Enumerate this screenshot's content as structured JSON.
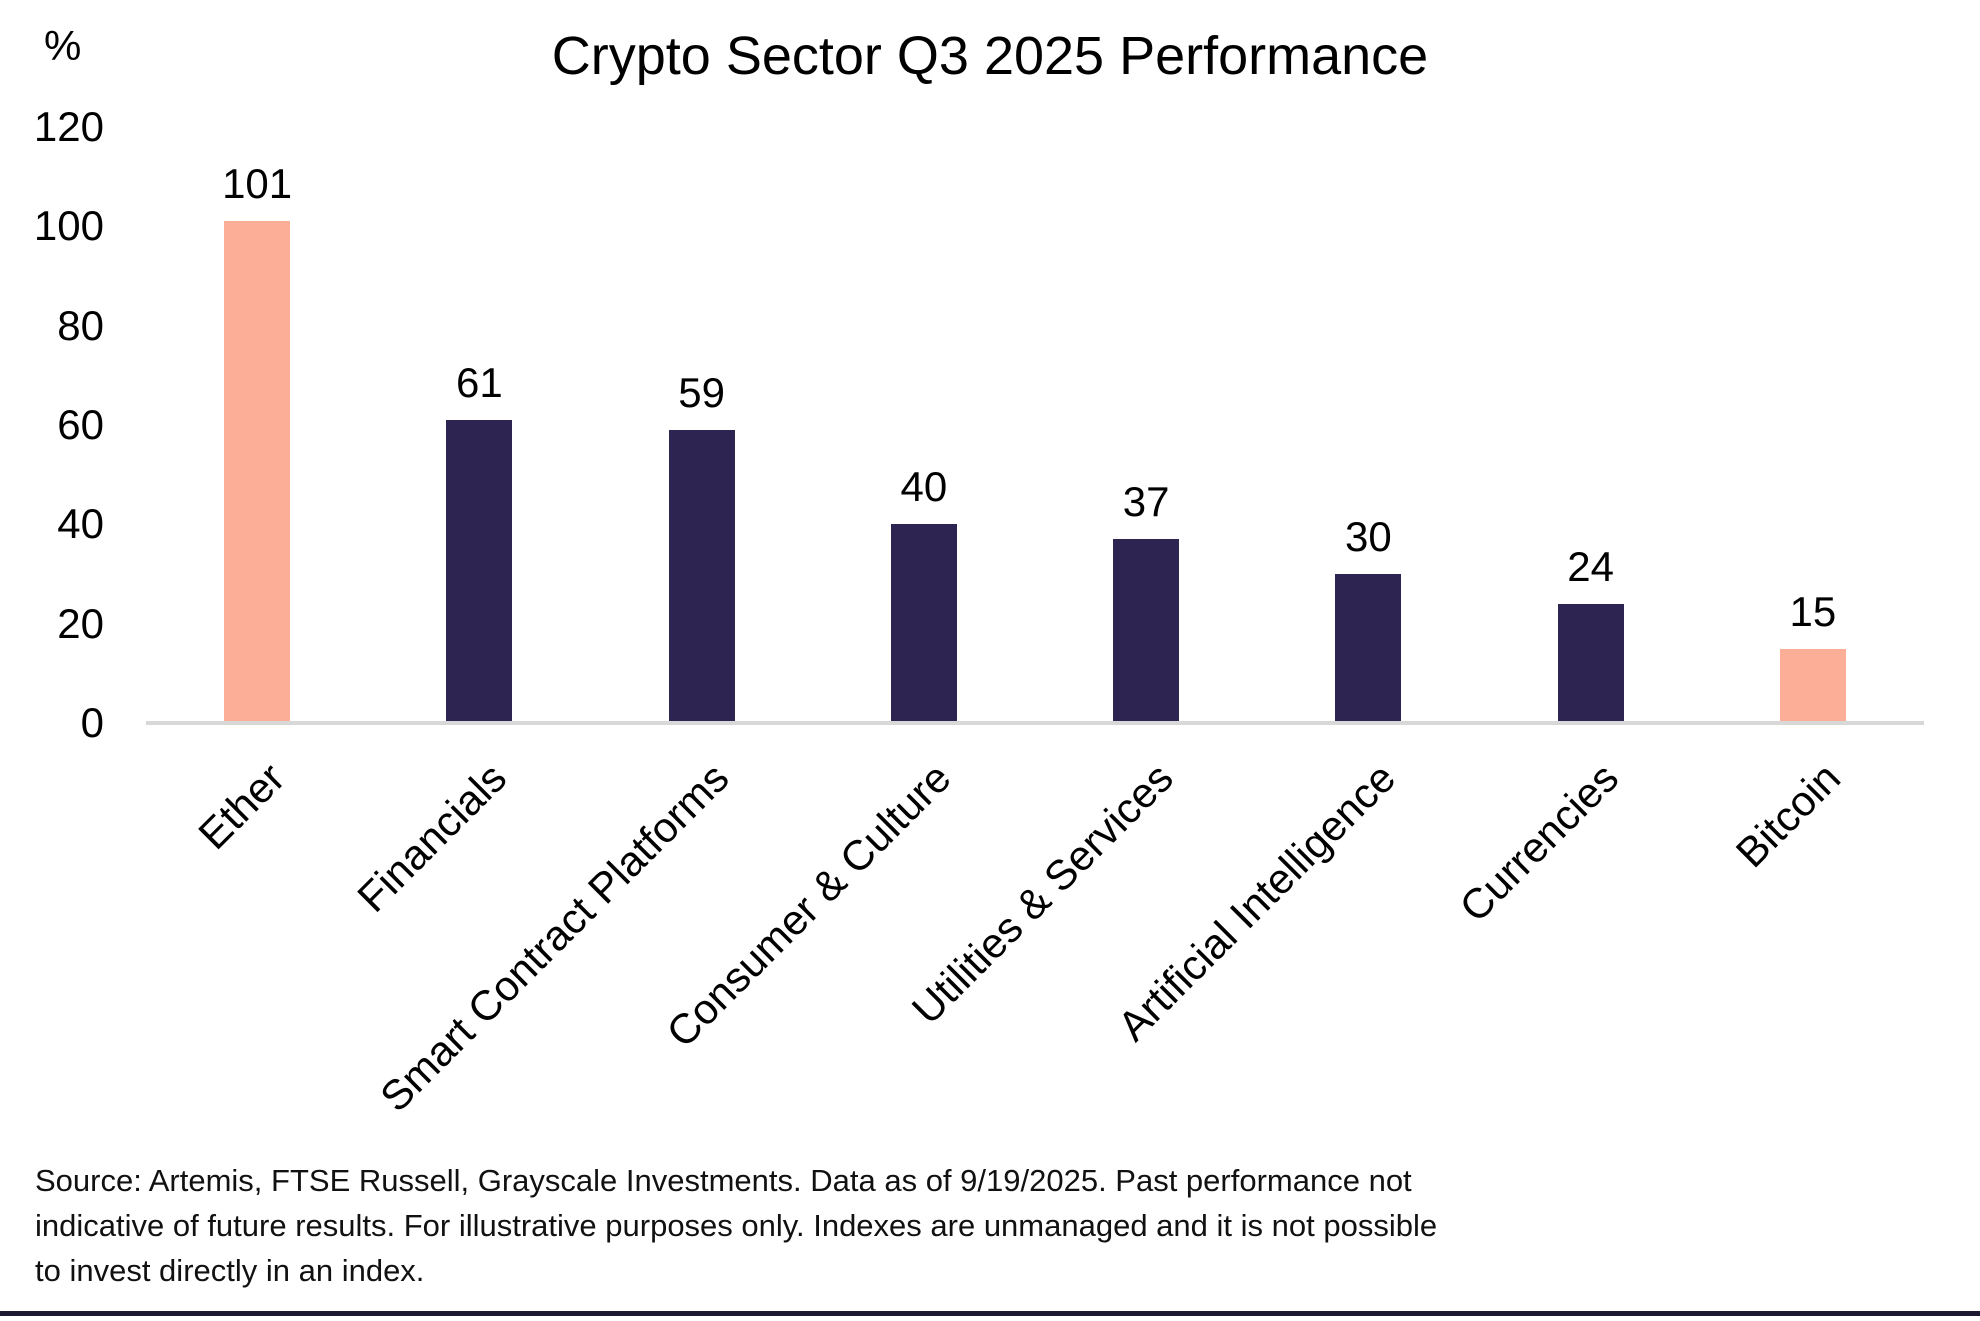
{
  "chart_data": {
    "type": "bar",
    "title": "Crypto Sector Q3 2025 Performance",
    "ylabel": "%",
    "ylim": [
      0,
      120
    ],
    "yticks": [
      0,
      20,
      40,
      60,
      80,
      100,
      120
    ],
    "categories": [
      "Ether",
      "Financials",
      "Smart Contract Platforms",
      "Consumer & Culture",
      "Utilities & Services",
      "Artificial Intelligence",
      "Currencies",
      "Bitcoin"
    ],
    "values": [
      101,
      61,
      59,
      40,
      37,
      30,
      24,
      15
    ],
    "bar_colors": [
      "#fcaf96",
      "#2e2452",
      "#2e2452",
      "#2e2452",
      "#2e2452",
      "#2e2452",
      "#2e2452",
      "#fcaf96"
    ],
    "value_labels_shown": true,
    "grid": false,
    "legend": false,
    "x_tick_rotation_degrees": 45
  },
  "colors": {
    "accent_peach": "#fcaf96",
    "accent_dark_purple": "#2e2452",
    "axis_line": "#d8d8d8",
    "footer_rule": "#1c1a32",
    "text": "#000000"
  },
  "footnote": {
    "lines": [
      "Source: Artemis, FTSE Russell, Grayscale Investments. Data as of 9/19/2025. Past performance not",
      "indicative of future results. For illustrative purposes only. Indexes are unmanaged and it is not possible",
      "to invest directly in an index."
    ]
  }
}
